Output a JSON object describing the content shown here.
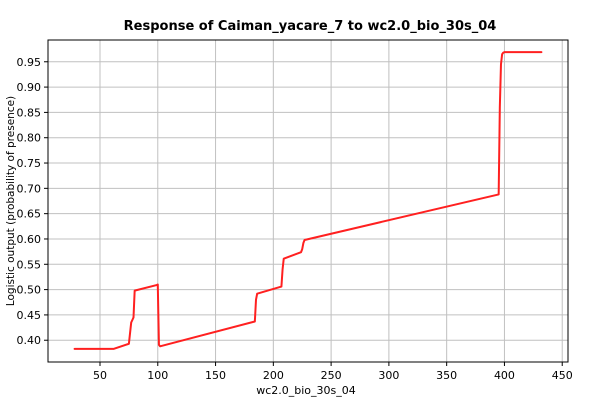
{
  "chart_data": {
    "type": "line",
    "title": "Response of Caiman_yacare_7 to wc2.0_bio_30s_04",
    "xlabel": "wc2.0_bio_30s_04",
    "ylabel": "Logistic output (probability of presence)",
    "xlim": [
      5,
      455
    ],
    "ylim": [
      0.357,
      0.993
    ],
    "xticks": [
      50,
      100,
      150,
      200,
      250,
      300,
      350,
      400,
      450
    ],
    "yticks": [
      0.4,
      0.45,
      0.5,
      0.55,
      0.6,
      0.65,
      0.7,
      0.75,
      0.8,
      0.85,
      0.9,
      0.95
    ],
    "grid": true,
    "line_color": "#ff2020",
    "series": [
      {
        "x": [
          28,
          62,
          75,
          77,
          78,
          79,
          80,
          99,
          100,
          100.5,
          101,
          102,
          184,
          185,
          186,
          207,
          208,
          209,
          224,
          225,
          226,
          227,
          395,
          396,
          397,
          398,
          399,
          400,
          432
        ],
        "y": [
          0.383,
          0.383,
          0.393,
          0.435,
          0.44,
          0.445,
          0.498,
          0.509,
          0.51,
          0.45,
          0.391,
          0.388,
          0.437,
          0.48,
          0.492,
          0.506,
          0.54,
          0.561,
          0.574,
          0.58,
          0.592,
          0.598,
          0.688,
          0.86,
          0.945,
          0.965,
          0.968,
          0.969,
          0.969
        ]
      }
    ]
  }
}
